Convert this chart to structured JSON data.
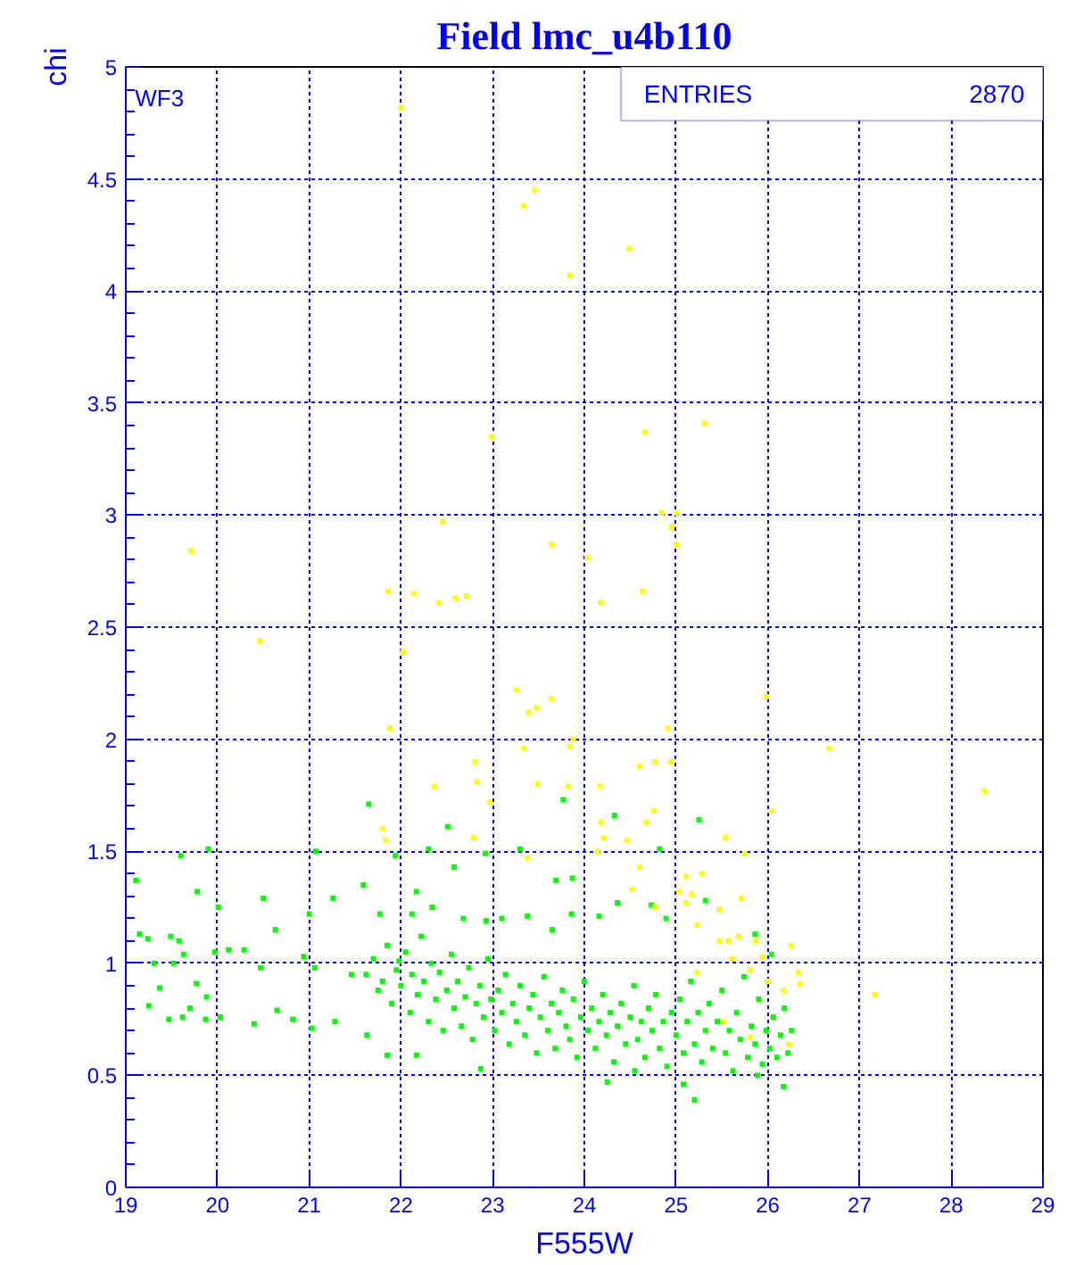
{
  "chart_data": {
    "type": "scatter",
    "title": "Field lmc_u4b110",
    "xlabel": "F555W",
    "ylabel": "chi",
    "annotations": [
      "WF3",
      "ENTRIES",
      "2870"
    ],
    "xlim": [
      19,
      29
    ],
    "ylim": [
      0,
      5
    ],
    "xticks": [
      19,
      20,
      21,
      22,
      23,
      24,
      25,
      26,
      27,
      28,
      29
    ],
    "yticks": [
      0,
      0.5,
      1,
      1.5,
      2,
      2.5,
      3,
      3.5,
      4,
      4.5,
      5
    ],
    "grid": true,
    "marker": "square",
    "series": [
      {
        "color": "#00ff00",
        "x": [
          19.11,
          19.15,
          19.24,
          19.49,
          19.58,
          19.63,
          19.31,
          19.52,
          19.37,
          19.47,
          19.62,
          19.25,
          19.7,
          19.77,
          19.87,
          19.6,
          19.9,
          19.78,
          19.97,
          20.03,
          19.88,
          20.01,
          20.12,
          20.29,
          20.5,
          20.47,
          20.4,
          20.65,
          20.63,
          20.82,
          20.94,
          21.0,
          21.07,
          21.06,
          21.03,
          21.26,
          21.28,
          21.46,
          21.59,
          21.65,
          21.63,
          21.77,
          21.85,
          21.94,
          21.98,
          23.77,
          24.33,
          25.25,
          22.51,
          22.3,
          22.92,
          23.3,
          24.82,
          23.69,
          23.87,
          22.58,
          22.17,
          22.12,
          22.34,
          22.68,
          22.93,
          23.1,
          23.38,
          23.65,
          23.86,
          24.16,
          24.36,
          24.73,
          24.89,
          25.32,
          25.86,
          26.04,
          26.17,
          25.89,
          25.08,
          24.25,
          24.55,
          22.87,
          22.17,
          25.2,
          21.62,
          21.7,
          21.75,
          21.8,
          21.85,
          21.9,
          21.95,
          22.0,
          22.05,
          22.1,
          22.12,
          22.18,
          22.22,
          22.25,
          22.3,
          22.33,
          22.38,
          22.42,
          22.46,
          22.5,
          22.55,
          22.58,
          22.62,
          22.66,
          22.7,
          22.74,
          22.78,
          22.82,
          22.86,
          22.9,
          22.95,
          22.98,
          23.02,
          23.06,
          23.1,
          23.14,
          23.18,
          23.22,
          23.26,
          23.3,
          23.35,
          23.4,
          23.44,
          23.48,
          23.52,
          23.56,
          23.6,
          23.64,
          23.68,
          23.72,
          23.76,
          23.8,
          23.84,
          23.88,
          23.92,
          23.96,
          24.0,
          24.04,
          24.08,
          24.12,
          24.16,
          24.2,
          24.24,
          24.28,
          24.32,
          24.36,
          24.4,
          24.45,
          24.5,
          24.54,
          24.58,
          24.62,
          24.66,
          24.7,
          24.74,
          24.78,
          24.82,
          24.86,
          24.9,
          24.95,
          25.0,
          25.04,
          25.08,
          25.12,
          25.16,
          25.2,
          25.24,
          25.28,
          25.32,
          25.36,
          25.4,
          25.45,
          25.5,
          25.54,
          25.58,
          25.62,
          25.66,
          25.7,
          25.74,
          25.78,
          25.82,
          25.86,
          25.9,
          25.94,
          25.98,
          26.02,
          26.06,
          26.1,
          26.14,
          26.18,
          26.22,
          26.26
        ],
        "values": [
          1.37,
          1.13,
          1.11,
          1.12,
          1.1,
          1.04,
          1.0,
          1.0,
          0.89,
          0.75,
          0.76,
          0.81,
          0.8,
          0.91,
          0.75,
          1.48,
          1.51,
          1.32,
          1.05,
          0.76,
          0.85,
          1.25,
          1.06,
          1.06,
          1.29,
          0.98,
          0.73,
          0.79,
          1.15,
          0.75,
          1.03,
          1.22,
          1.5,
          0.98,
          0.71,
          1.29,
          0.74,
          0.95,
          1.35,
          1.71,
          0.68,
          1.22,
          0.59,
          1.48,
          1.01,
          1.73,
          1.66,
          1.64,
          1.61,
          1.51,
          1.49,
          1.51,
          1.51,
          1.37,
          1.38,
          1.43,
          1.32,
          1.22,
          1.25,
          1.2,
          1.19,
          1.2,
          1.21,
          1.15,
          1.22,
          1.21,
          1.27,
          1.26,
          1.2,
          1.28,
          1.13,
          1.04,
          0.45,
          0.5,
          0.46,
          0.47,
          0.52,
          0.53,
          0.59,
          0.39,
          0.95,
          1.02,
          0.88,
          0.92,
          1.08,
          0.82,
          0.97,
          0.9,
          1.05,
          0.78,
          0.95,
          0.86,
          1.12,
          0.92,
          0.74,
          1.0,
          0.84,
          0.96,
          0.7,
          0.88,
          1.04,
          0.8,
          0.92,
          0.72,
          0.85,
          0.98,
          0.66,
          0.82,
          0.9,
          0.76,
          1.02,
          0.84,
          0.7,
          0.88,
          0.78,
          0.95,
          0.64,
          0.82,
          0.74,
          0.9,
          0.68,
          0.8,
          0.86,
          0.6,
          0.76,
          0.94,
          0.7,
          0.82,
          0.62,
          0.78,
          0.88,
          0.72,
          0.66,
          0.84,
          0.58,
          0.76,
          0.92,
          0.7,
          0.8,
          0.62,
          0.74,
          0.86,
          0.68,
          0.78,
          0.56,
          0.72,
          0.82,
          0.64,
          0.76,
          0.9,
          0.66,
          0.74,
          0.58,
          0.8,
          0.7,
          0.86,
          0.62,
          0.74,
          0.54,
          0.78,
          0.68,
          0.84,
          0.6,
          0.74,
          0.92,
          0.64,
          0.78,
          0.56,
          0.7,
          0.82,
          0.62,
          0.74,
          0.88,
          0.6,
          0.7,
          0.52,
          0.78,
          0.66,
          0.94,
          0.58,
          0.72,
          0.64,
          0.84,
          0.55,
          0.7,
          0.62,
          0.76,
          0.58,
          0.68,
          0.8,
          0.6,
          0.7
        ]
      },
      {
        "color": "#ffff00",
        "x": [
          22.0,
          23.46,
          23.34,
          24.49,
          23.84,
          22.99,
          24.66,
          25.31,
          22.45,
          24.84,
          25.0,
          24.95,
          19.71,
          23.64,
          25.0,
          24.03,
          21.86,
          22.14,
          22.41,
          22.59,
          22.71,
          24.18,
          24.63,
          20.46,
          22.02,
          25.98,
          23.26,
          23.39,
          23.48,
          23.64,
          21.88,
          24.91,
          26.67,
          23.84,
          23.88,
          23.34,
          22.81,
          24.94,
          28.36,
          22.36,
          22.83,
          22.97,
          23.49,
          23.82,
          24.17,
          24.6,
          24.77,
          24.76,
          24.68,
          24.18,
          24.21,
          24.46,
          24.14,
          24.6,
          21.83,
          21.8,
          22.79,
          23.38,
          25.54,
          25.75,
          26.04,
          24.52,
          24.77,
          25.11,
          25.28,
          25.03,
          25.17,
          25.11,
          25.23,
          25.47,
          25.71,
          25.47,
          25.68,
          25.87,
          25.94,
          26.25,
          26.33,
          26.35,
          26.17,
          26.0,
          25.81,
          25.61,
          25.23,
          25.81,
          26.23,
          25.52,
          25.57,
          27.17
        ],
        "values": [
          4.82,
          4.45,
          4.38,
          4.19,
          4.07,
          3.35,
          3.37,
          3.41,
          2.97,
          3.01,
          3.01,
          2.95,
          2.84,
          2.87,
          2.87,
          2.81,
          2.66,
          2.65,
          2.61,
          2.63,
          2.64,
          2.61,
          2.66,
          2.44,
          2.39,
          2.19,
          2.22,
          2.12,
          2.14,
          2.18,
          2.05,
          2.05,
          1.96,
          1.97,
          2.0,
          1.96,
          1.9,
          1.9,
          1.77,
          1.79,
          1.81,
          1.72,
          1.8,
          1.79,
          1.79,
          1.88,
          1.9,
          1.68,
          1.63,
          1.63,
          1.56,
          1.55,
          1.5,
          1.43,
          1.55,
          1.6,
          1.56,
          1.47,
          1.56,
          1.49,
          1.68,
          1.33,
          1.25,
          1.39,
          1.4,
          1.32,
          1.31,
          1.27,
          1.17,
          1.24,
          1.29,
          1.1,
          1.12,
          1.1,
          1.03,
          1.08,
          0.96,
          0.91,
          0.88,
          0.92,
          0.97,
          1.02,
          0.96,
          0.67,
          0.64,
          0.74,
          1.1,
          0.86
        ]
      }
    ]
  }
}
